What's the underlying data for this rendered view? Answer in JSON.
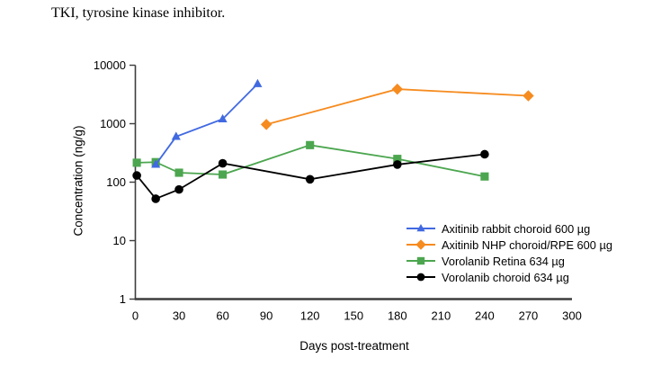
{
  "note": "TKI, tyrosine kinase inhibitor.",
  "chart_data": {
    "type": "line",
    "title": "",
    "xlabel": "Days post-treatment",
    "ylabel": "Concentration (ng/g)",
    "y_scale": "log",
    "xlim": [
      0,
      300
    ],
    "ylim": [
      1,
      10000
    ],
    "x_ticks": [
      0,
      30,
      60,
      90,
      120,
      150,
      180,
      210,
      240,
      270,
      300
    ],
    "y_ticks": [
      1,
      10,
      100,
      1000,
      10000
    ],
    "grid": false,
    "legend_position": "inside-lower-right",
    "axis_color": "#3d3d3d",
    "series": [
      {
        "name": "Axitinib rabbit choroid 600 µg",
        "color": "#4169E1",
        "marker": "triangle",
        "x": [
          14,
          28,
          60,
          84
        ],
        "y": [
          200,
          600,
          1200,
          4800
        ]
      },
      {
        "name": "Axitinib NHP choroid/RPE 600 µg",
        "color": "#F68B1F",
        "marker": "diamond",
        "x": [
          90,
          180,
          270
        ],
        "y": [
          970,
          3900,
          3000
        ]
      },
      {
        "name": "Vorolanib Retina 634 µg",
        "color": "#4CA64F",
        "marker": "square",
        "x": [
          1,
          14,
          30,
          60,
          120,
          180,
          240
        ],
        "y": [
          215,
          220,
          145,
          135,
          430,
          250,
          125
        ]
      },
      {
        "name": "Vorolanib choroid 634 µg",
        "color": "#000000",
        "marker": "circle",
        "x": [
          1,
          14,
          30,
          60,
          120,
          180,
          240
        ],
        "y": [
          130,
          52,
          75,
          210,
          112,
          200,
          300
        ]
      }
    ]
  }
}
